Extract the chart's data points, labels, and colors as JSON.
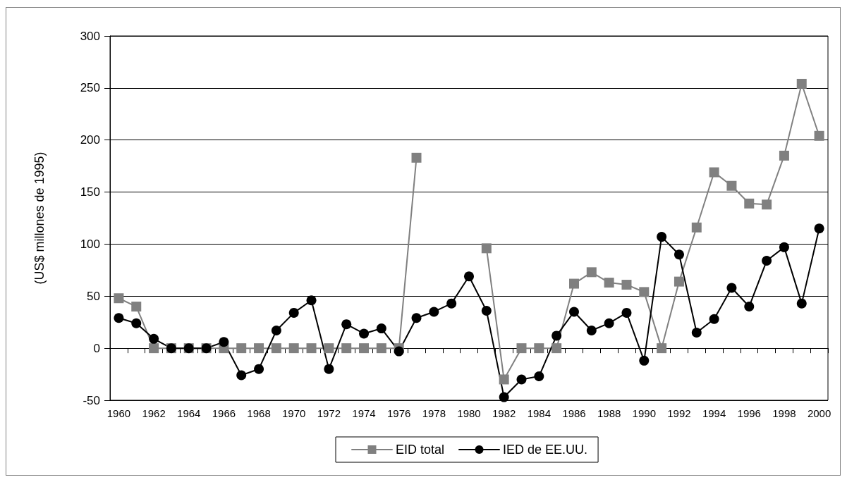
{
  "chart_data": {
    "type": "line",
    "ylabel": "(US$ millones de 1995)",
    "categories": [
      "1960",
      null,
      "1962",
      null,
      "1964",
      null,
      "1966",
      null,
      "1968",
      null,
      "1970",
      null,
      "1972",
      null,
      "1974",
      null,
      "1976",
      null,
      "1978",
      null,
      "1980",
      null,
      "1982",
      null,
      "1984",
      null,
      "1986",
      null,
      "1988",
      null,
      "1990",
      null,
      "1992",
      null,
      "1994",
      null,
      "1996",
      null,
      "1998",
      null,
      "2000"
    ],
    "series": [
      {
        "name": "EID total",
        "color": "#808080",
        "marker": "square",
        "values": [
          48,
          40,
          0,
          0,
          0,
          0,
          0,
          0,
          0,
          0,
          0,
          0,
          0,
          0,
          0,
          0,
          0,
          183,
          null,
          null,
          null,
          96,
          -30,
          0,
          0,
          0,
          62,
          73,
          63,
          61,
          54,
          0,
          64,
          116,
          169,
          156,
          139,
          138,
          185,
          254,
          204
        ]
      },
      {
        "name": "IED de EE.UU.",
        "color": "#000000",
        "marker": "circle",
        "values": [
          29,
          24,
          9,
          0,
          0,
          0,
          6,
          -26,
          -20,
          17,
          34,
          46,
          -20,
          23,
          14,
          19,
          -3,
          29,
          35,
          43,
          69,
          36,
          -47,
          -30,
          -27,
          12,
          35,
          17,
          24,
          34,
          -12,
          107,
          90,
          15,
          28,
          58,
          40,
          84,
          97,
          43,
          115
        ]
      }
    ],
    "ylim": [
      -50,
      300
    ],
    "yticks": [
      -50,
      0,
      50,
      100,
      150,
      200,
      250,
      300
    ],
    "grid": "y",
    "legend": "bottom",
    "line_style": "solid"
  }
}
